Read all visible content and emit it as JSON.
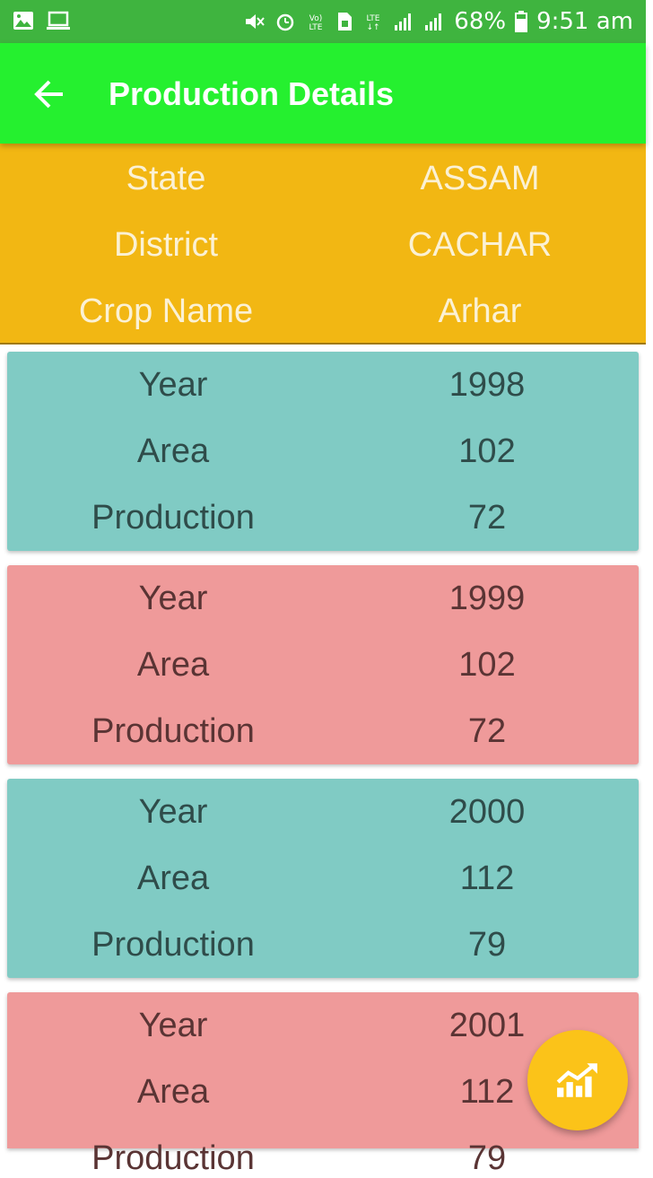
{
  "status_bar": {
    "battery": "68%",
    "time": "9:51 am",
    "icons": [
      "image-icon",
      "laptop-icon",
      "mute-icon",
      "alarm-icon",
      "volte-icon",
      "sim-icon",
      "lte-icon",
      "signal-icon",
      "signal-roaming-icon",
      "battery-icon"
    ]
  },
  "app_bar": {
    "title": "Production Details",
    "back_icon": "arrow-left-icon"
  },
  "info": {
    "state_label": "State",
    "state_value": "ASSAM",
    "district_label": "District",
    "district_value": "CACHAR",
    "crop_label": "Crop Name",
    "crop_value": "Arhar"
  },
  "records": [
    {
      "year_label": "Year",
      "year": "1998",
      "area_label": "Area",
      "area": "102",
      "production_label": "Production",
      "production": "72"
    },
    {
      "year_label": "Year",
      "year": "1999",
      "area_label": "Area",
      "area": "102",
      "production_label": "Production",
      "production": "72"
    },
    {
      "year_label": "Year",
      "year": "2000",
      "area_label": "Area",
      "area": "112",
      "production_label": "Production",
      "production": "79"
    },
    {
      "year_label": "Year",
      "year": "2001",
      "area_label": "Area",
      "area": "112",
      "production_label": "Production",
      "production": "79"
    }
  ],
  "fab": {
    "icon": "chart-trending-up-icon"
  },
  "colors": {
    "status_bar": "#3fb43f",
    "app_bar": "#25f02f",
    "info_bg": "#f2b713",
    "card_teal": "#80cbc4",
    "card_pink": "#ef9a9a",
    "fab": "#fbc319"
  }
}
